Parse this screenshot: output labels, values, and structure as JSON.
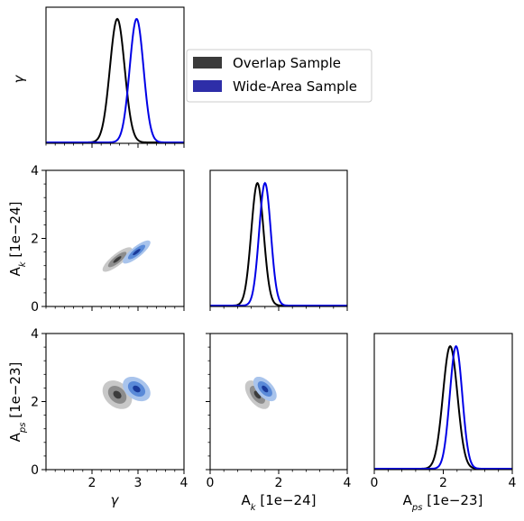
{
  "chart_data": {
    "type": "corner",
    "parameters": [
      {
        "key": "gamma",
        "tick_label": "γ",
        "range": [
          1,
          4
        ],
        "ticks": [
          2,
          3,
          4
        ]
      },
      {
        "key": "Ak",
        "range": [
          0,
          4
        ],
        "ticks": [
          0,
          2,
          4
        ],
        "label_main": "A",
        "label_sub": "k",
        "label_tail": "  [1e−24]"
      },
      {
        "key": "Aps",
        "range": [
          0,
          4
        ],
        "ticks": [
          0,
          2,
          4
        ],
        "label_main": "A",
        "label_sub": "ps",
        "label_tail": "  [1e−23]"
      }
    ],
    "series": [
      {
        "name": "Overlap Sample",
        "line_color": "#000000",
        "fill_colors": [
          "#c8c8c8",
          "#8c8c8c",
          "#3c3c3c"
        ],
        "legend_color": "#3a3a3a",
        "mean": {
          "gamma": 2.55,
          "Ak": 1.38,
          "Aps": 2.2
        },
        "sd": {
          "gamma": 0.16,
          "Ak": 0.18,
          "Aps": 0.21
        },
        "corr": {
          "gamma_Ak": 0.82,
          "gamma_Aps": -0.3,
          "Ak_Aps": -0.55
        },
        "peak": {
          "gamma": 1.0,
          "Ak": 3.6,
          "Aps": 3.6
        }
      },
      {
        "name": "Wide-Area Sample",
        "line_color": "#0000e6",
        "fill_colors": [
          "#a9c4ec",
          "#5a8ad8",
          "#1a3a9a"
        ],
        "legend_color": "#2e2ea8",
        "mean": {
          "gamma": 2.97,
          "Ak": 1.6,
          "Aps": 2.37
        },
        "sd": {
          "gamma": 0.15,
          "Ak": 0.17,
          "Aps": 0.18
        },
        "corr": {
          "gamma_Ak": 0.82,
          "gamma_Aps": -0.35,
          "Ak_Aps": -0.55
        },
        "peak": {
          "gamma": 1.0,
          "Ak": 3.6,
          "Aps": 3.6
        }
      }
    ],
    "legend": {
      "position": "upper-right",
      "labels": [
        "Overlap Sample",
        "Wide-Area Sample"
      ]
    },
    "y_label_gamma": "γ"
  }
}
